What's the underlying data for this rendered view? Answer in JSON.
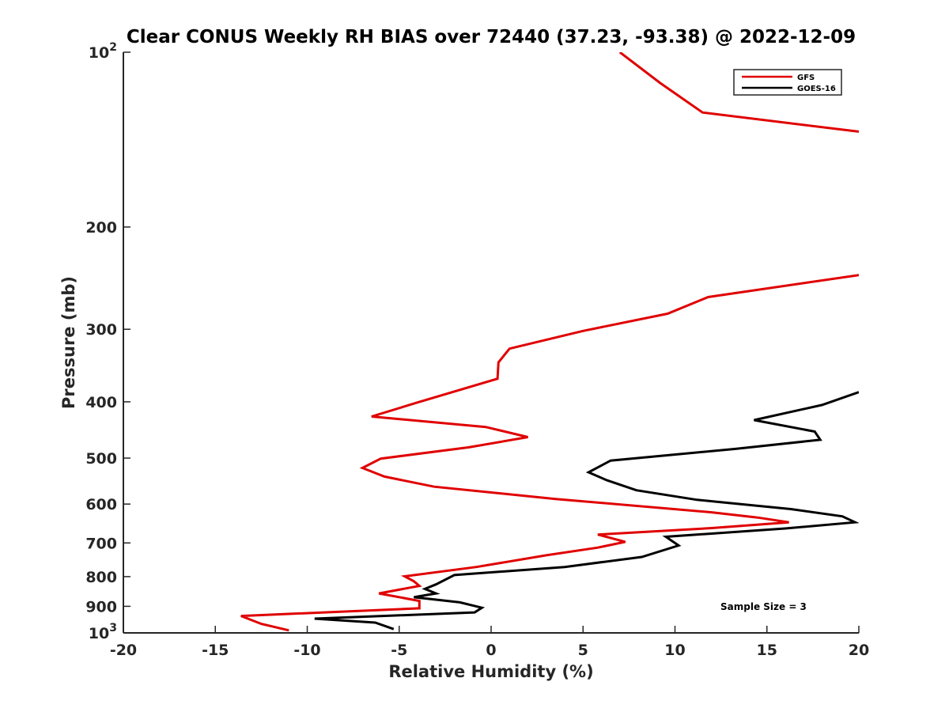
{
  "chart_data": {
    "type": "line",
    "title": "Clear CONUS Weekly RH BIAS over 72440 (37.23, -93.38) @ 2022-12-09",
    "xlabel": "Relative Humidity (%)",
    "ylabel": "Pressure (mb)",
    "xlim": [
      -20,
      20
    ],
    "ylim": [
      100,
      1000
    ],
    "y_scale": "log",
    "y_reversed": true,
    "grid": false,
    "legend_position": "top-right",
    "x_ticks": [
      "-20",
      "-15",
      "-10",
      "-5",
      "0",
      "5",
      "10",
      "15",
      "20"
    ],
    "y_ticks": [
      {
        "value": 100,
        "base": "10",
        "exp": "2"
      },
      {
        "value": 200,
        "label": "200"
      },
      {
        "value": 300,
        "label": "300"
      },
      {
        "value": 400,
        "label": "400"
      },
      {
        "value": 500,
        "label": "500"
      },
      {
        "value": 600,
        "label": "600"
      },
      {
        "value": 700,
        "label": "700"
      },
      {
        "value": 800,
        "label": "800"
      },
      {
        "value": 900,
        "label": "900"
      },
      {
        "value": 1000,
        "base": "10",
        "exp": "3"
      }
    ],
    "annotation": "Sample Size = 3",
    "series": [
      {
        "name": "GFS",
        "color": "#e00000",
        "points": [
          [
            7.0,
            100
          ],
          [
            9.2,
            113
          ],
          [
            11.5,
            127
          ],
          [
            20.0,
            137
          ],
          [
            null,
            null
          ],
          [
            20.0,
            242
          ],
          [
            11.8,
            264
          ],
          [
            9.6,
            282
          ],
          [
            5.0,
            302
          ],
          [
            1.0,
            324
          ],
          [
            0.4,
            342
          ],
          [
            0.35,
            365
          ],
          [
            -4.0,
            401
          ],
          [
            -6.5,
            424
          ],
          [
            -0.3,
            442
          ],
          [
            2.0,
            460
          ],
          [
            -1.2,
            479
          ],
          [
            -6.0,
            501
          ],
          [
            -7.0,
            520
          ],
          [
            -5.8,
            538
          ],
          [
            -3.1,
            560
          ],
          [
            3.5,
            588
          ],
          [
            12.0,
            620
          ],
          [
            14.5,
            633
          ],
          [
            16.2,
            645
          ],
          [
            12.0,
            660
          ],
          [
            5.8,
            677
          ],
          [
            7.3,
            697
          ],
          [
            5.8,
            713
          ],
          [
            3.0,
            735
          ],
          [
            -0.8,
            770
          ],
          [
            -4.7,
            799
          ],
          [
            -4.2,
            815
          ],
          [
            -3.9,
            830
          ],
          [
            -6.1,
            855
          ],
          [
            -3.9,
            881
          ],
          [
            -3.9,
            907
          ],
          [
            -13.6,
            935
          ],
          [
            -12.5,
            965
          ],
          [
            -11.0,
            990
          ]
        ]
      },
      {
        "name": "GOES-16",
        "color": "#000000",
        "points": [
          [
            20.0,
            385
          ],
          [
            18.0,
            405
          ],
          [
            14.3,
            430
          ],
          [
            17.6,
            450
          ],
          [
            17.9,
            465
          ],
          [
            13.3,
            482
          ],
          [
            6.5,
            505
          ],
          [
            5.3,
            529
          ],
          [
            6.3,
            546
          ],
          [
            7.9,
            568
          ],
          [
            11.2,
            590
          ],
          [
            16.3,
            612
          ],
          [
            19.1,
            630
          ],
          [
            19.8,
            645
          ],
          [
            16.0,
            661
          ],
          [
            9.5,
            683
          ],
          [
            10.2,
            707
          ],
          [
            8.2,
            740
          ],
          [
            4.0,
            770
          ],
          [
            -2.0,
            795
          ],
          [
            -3.0,
            825
          ],
          [
            -3.6,
            840
          ],
          [
            -3.0,
            855
          ],
          [
            -4.2,
            868
          ],
          [
            -1.7,
            886
          ],
          [
            -0.5,
            905
          ],
          [
            -0.9,
            922
          ],
          [
            -9.6,
            945
          ],
          [
            -6.3,
            960
          ],
          [
            -5.3,
            985
          ]
        ]
      }
    ]
  }
}
